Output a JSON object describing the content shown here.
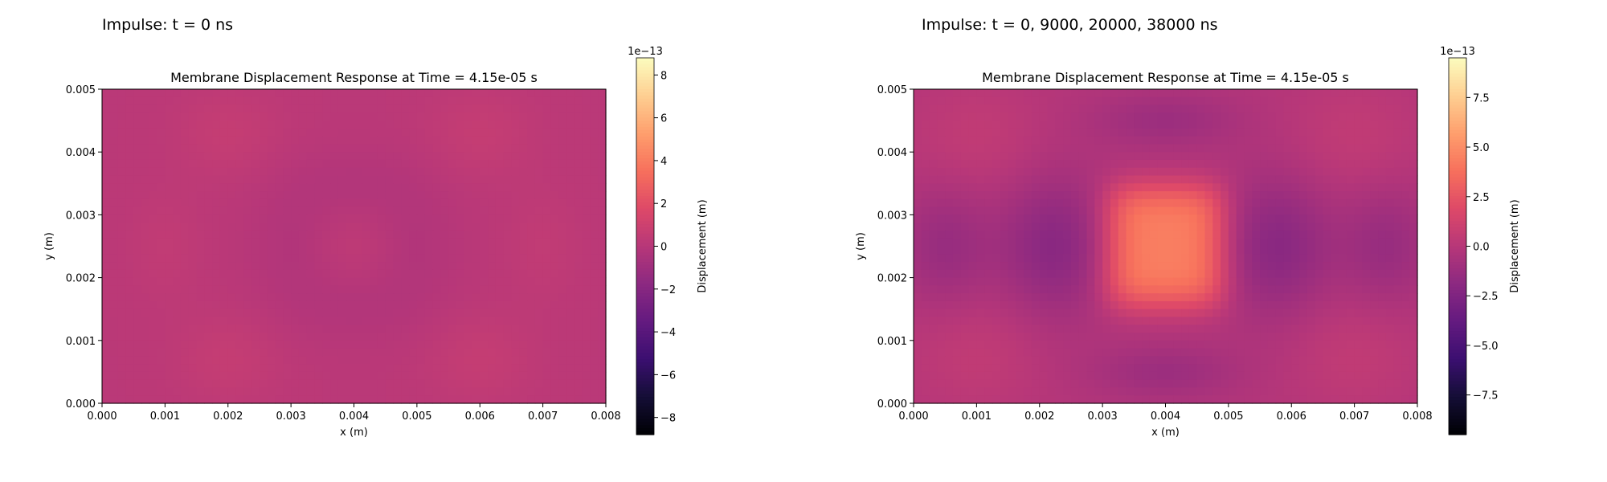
{
  "panels": [
    {
      "heading": "Impulse: t = 0 ns"
    },
    {
      "heading": "Impulse: t = 0, 9000, 20000, 38000 ns"
    }
  ],
  "chart_data": [
    {
      "type": "heatmap",
      "title": "Membrane Displacement Response at Time = 4.15e-05 s",
      "xlabel": "x (m)",
      "ylabel": "y (m)",
      "xlim": [
        0,
        0.008
      ],
      "ylim": [
        0,
        0.005
      ],
      "xticks": [
        "0.000",
        "0.001",
        "0.002",
        "0.003",
        "0.004",
        "0.005",
        "0.006",
        "0.007",
        "0.008"
      ],
      "yticks": [
        "0.000",
        "0.001",
        "0.002",
        "0.003",
        "0.004",
        "0.005"
      ],
      "colormap": "magma",
      "colorbar": {
        "label": "Displacement (m)",
        "scale_label": "1e−13",
        "range": [
          -8.8,
          8.8
        ],
        "tick_values": [
          -8,
          -6,
          -4,
          -2,
          0,
          2,
          4,
          6,
          8
        ],
        "tick_labels": [
          "−8",
          "−6",
          "−4",
          "−2",
          "0",
          "2",
          "4",
          "6",
          "8"
        ]
      },
      "field": {
        "base": 0.15,
        "bumps": [
          {
            "x": 0.002,
            "y": 0.0043,
            "sx": 0.0006,
            "sy": 0.0005,
            "a": 0.45
          },
          {
            "x": 0.006,
            "y": 0.0043,
            "sx": 0.0006,
            "sy": 0.0005,
            "a": 0.45
          },
          {
            "x": 0.002,
            "y": 0.0007,
            "sx": 0.0006,
            "sy": 0.0005,
            "a": 0.45
          },
          {
            "x": 0.006,
            "y": 0.0007,
            "sx": 0.0006,
            "sy": 0.0005,
            "a": 0.45
          },
          {
            "x": 0.001,
            "y": 0.0025,
            "sx": 0.0004,
            "sy": 0.0006,
            "a": 0.3
          },
          {
            "x": 0.007,
            "y": 0.0025,
            "sx": 0.0004,
            "sy": 0.0006,
            "a": 0.3
          },
          {
            "x": 0.004,
            "y": 0.0025,
            "sx": 0.0004,
            "sy": 0.0004,
            "a": 0.25
          },
          {
            "x": 0.003,
            "y": 0.0025,
            "sx": 0.0005,
            "sy": 0.0008,
            "a": -0.35
          },
          {
            "x": 0.005,
            "y": 0.0025,
            "sx": 0.0005,
            "sy": 0.0008,
            "a": -0.35
          },
          {
            "x": 0.004,
            "y": 0.0015,
            "sx": 0.0007,
            "sy": 0.0004,
            "a": -0.3
          },
          {
            "x": 0.004,
            "y": 0.0035,
            "sx": 0.0007,
            "sy": 0.0004,
            "a": -0.3
          }
        ]
      }
    },
    {
      "type": "heatmap",
      "title": "Membrane Displacement Response at Time = 4.15e-05 s",
      "xlabel": "x (m)",
      "ylabel": "y (m)",
      "xlim": [
        0,
        0.008
      ],
      "ylim": [
        0,
        0.005
      ],
      "xticks": [
        "0.000",
        "0.001",
        "0.002",
        "0.003",
        "0.004",
        "0.005",
        "0.006",
        "0.007",
        "0.008"
      ],
      "yticks": [
        "0.000",
        "0.001",
        "0.002",
        "0.003",
        "0.004",
        "0.005"
      ],
      "colormap": "magma",
      "colorbar": {
        "label": "Displacement (m)",
        "scale_label": "1e−13",
        "range": [
          -9.5,
          9.5
        ],
        "tick_values": [
          -7.5,
          -5,
          -2.5,
          0,
          2.5,
          5,
          7.5
        ],
        "tick_labels": [
          "−7.5",
          "−5.0",
          "−2.5",
          "0.0",
          "2.5",
          "5.0",
          "7.5"
        ]
      },
      "field": {
        "base": -0.2,
        "bumps": [
          {
            "x": 0.004,
            "y": 0.0025,
            "sx": 0.00082,
            "sy": 0.00085,
            "a": 4.6,
            "sharp": 4
          },
          {
            "x": 0.0022,
            "y": 0.0025,
            "sx": 0.0006,
            "sy": 0.0008,
            "a": -1.8
          },
          {
            "x": 0.0058,
            "y": 0.0025,
            "sx": 0.0006,
            "sy": 0.0008,
            "a": -1.8
          },
          {
            "x": 0.0005,
            "y": 0.0025,
            "sx": 0.0005,
            "sy": 0.0007,
            "a": -1.2
          },
          {
            "x": 0.0075,
            "y": 0.0025,
            "sx": 0.0005,
            "sy": 0.0007,
            "a": -1.2
          },
          {
            "x": 0.004,
            "y": 0.0045,
            "sx": 0.0008,
            "sy": 0.0003,
            "a": -1.0
          },
          {
            "x": 0.004,
            "y": 0.0005,
            "sx": 0.0008,
            "sy": 0.0003,
            "a": -1.0
          },
          {
            "x": 0.001,
            "y": 0.0008,
            "sx": 0.0008,
            "sy": 0.0007,
            "a": 0.7
          },
          {
            "x": 0.007,
            "y": 0.0008,
            "sx": 0.0008,
            "sy": 0.0007,
            "a": 0.7
          },
          {
            "x": 0.001,
            "y": 0.0042,
            "sx": 0.0008,
            "sy": 0.0007,
            "a": 0.7
          },
          {
            "x": 0.007,
            "y": 0.0042,
            "sx": 0.0008,
            "sy": 0.0007,
            "a": 0.7
          }
        ]
      }
    }
  ]
}
